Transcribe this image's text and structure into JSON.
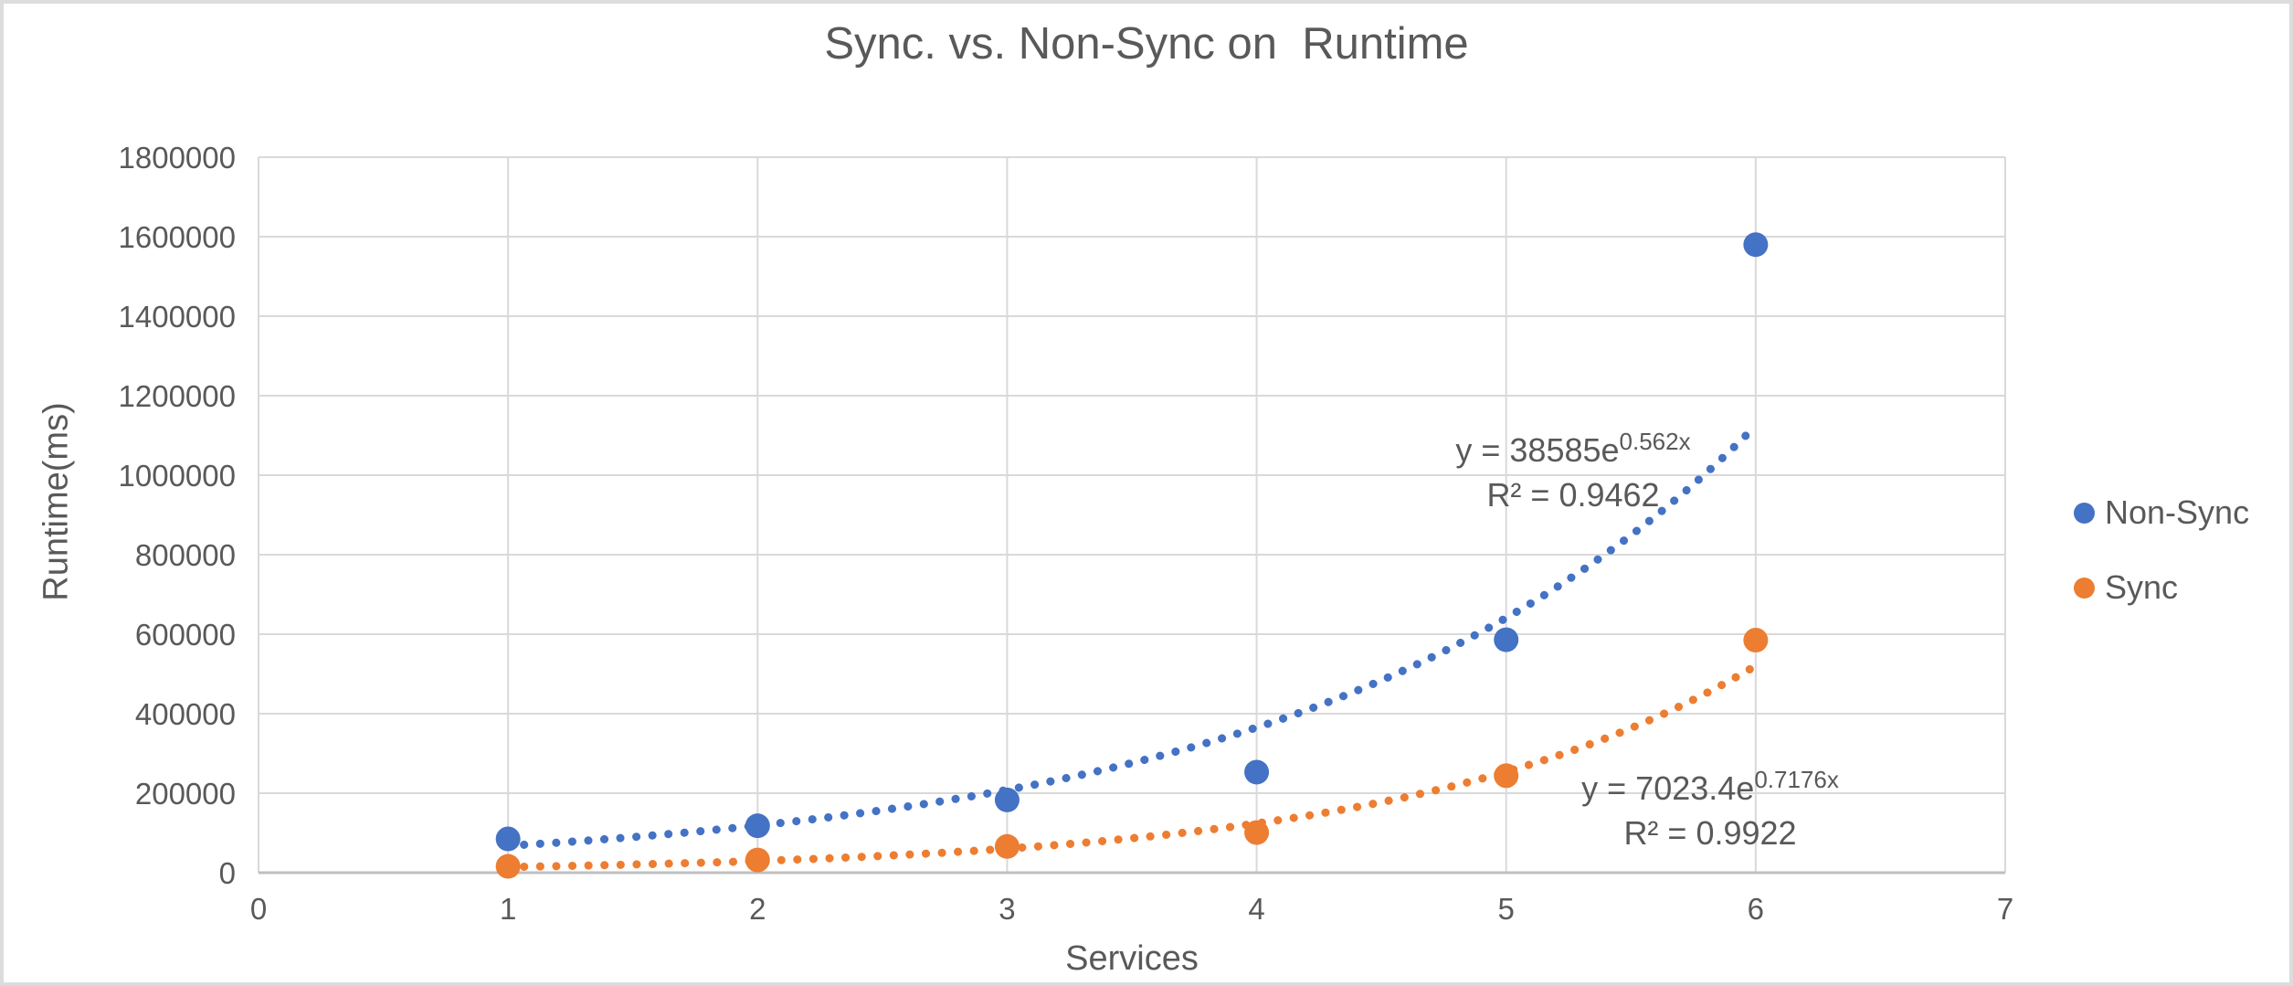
{
  "chart_data": {
    "type": "scatter",
    "title": "Sync. vs. Non-Sync on  Runtime",
    "xlabel": "Services",
    "ylabel": "Runtime(ms)",
    "xlim": [
      0,
      7
    ],
    "ylim": [
      0,
      1800000
    ],
    "x_ticks": [
      0,
      1,
      2,
      3,
      4,
      5,
      6,
      7
    ],
    "y_ticks": [
      0,
      200000,
      400000,
      600000,
      800000,
      1000000,
      1200000,
      1400000,
      1600000,
      1800000
    ],
    "grid": true,
    "legend_position": "right",
    "x": [
      1,
      2,
      3,
      4,
      5,
      6
    ],
    "series": [
      {
        "name": "Non-Sync",
        "color": "#4472C4",
        "values": [
          85000,
          118000,
          183000,
          253000,
          586000,
          1580000
        ],
        "trendline": {
          "type": "exponential",
          "a": 38585,
          "b": 0.562,
          "range": [
            1,
            6
          ],
          "equation_base": "y = 38585e",
          "equation_exponent": "0.562x",
          "r2": 0.9462,
          "r2_label": "R² = 0.9462"
        }
      },
      {
        "name": "Sync",
        "color": "#ED7D31",
        "values": [
          16000,
          32000,
          66000,
          101000,
          244000,
          585000
        ],
        "trendline": {
          "type": "exponential",
          "a": 7023.4,
          "b": 0.7176,
          "range": [
            1,
            6
          ],
          "equation_base": "y = 7023.4e",
          "equation_exponent": "0.7176x",
          "r2": 0.9922,
          "r2_label": "R² = 0.9922"
        }
      }
    ],
    "colors": {
      "gridline": "#D9D9D9",
      "axis_line": "#BFBFBF",
      "text": "#595959"
    }
  }
}
